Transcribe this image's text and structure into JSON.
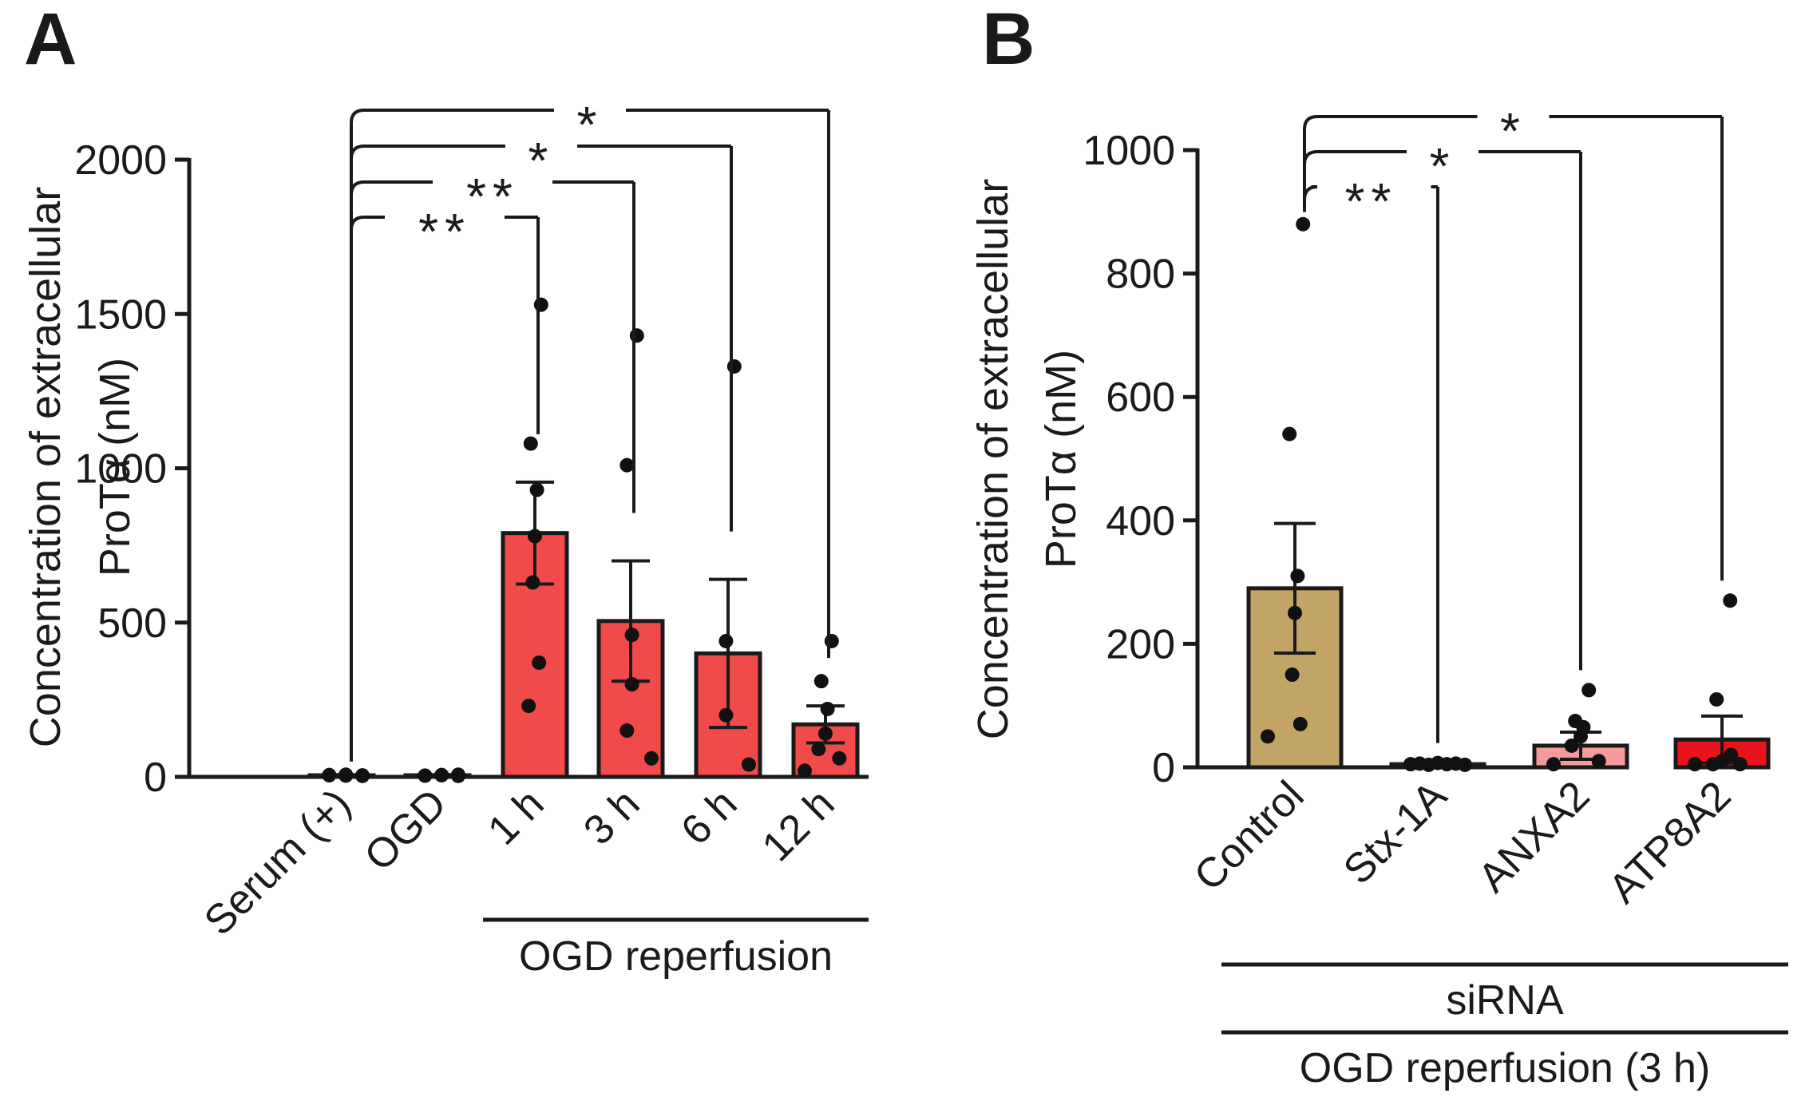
{
  "chart_data": [
    {
      "panel": "A",
      "type": "bar",
      "ylabel": [
        "Concentration of extracellular",
        "ProTα (nM)"
      ],
      "ylim": [
        0,
        2000
      ],
      "yticks": [
        0,
        500,
        1000,
        1500,
        2000
      ],
      "yticklabels": [
        "0",
        "500",
        "1000",
        "1500",
        "2000"
      ],
      "categories": [
        "Serum (+)",
        "OGD",
        "1 h",
        "3 h",
        "6 h",
        "12 h"
      ],
      "colors": [
        "#e23a3a",
        "#e23a3a",
        "#f04a4a",
        "#f04a4a",
        "#f04a4a",
        "#f04a4a"
      ],
      "values": [
        5,
        5,
        790,
        505,
        400,
        170
      ],
      "errors": [
        2,
        2,
        165,
        195,
        240,
        60
      ],
      "points": [
        [
          3,
          5,
          7,
          4,
          6,
          5
        ],
        [
          3,
          4,
          6,
          5,
          4,
          7
        ],
        [
          1530,
          1080,
          930,
          780,
          630,
          370,
          230
        ],
        [
          1430,
          1010,
          460,
          300,
          150,
          60
        ],
        [
          1330,
          440,
          200,
          40
        ],
        [
          440,
          310,
          220,
          140,
          90,
          60,
          20
        ]
      ],
      "groups": [
        {
          "label": "OGD reperfusion",
          "from": 2,
          "to": 5
        }
      ],
      "significance": [
        {
          "from": 0,
          "to": 5,
          "label": "*"
        },
        {
          "from": 0,
          "to": 4,
          "label": "*"
        },
        {
          "from": 0,
          "to": 3,
          "label": "**"
        },
        {
          "from": 0,
          "to": 2,
          "label": "**"
        }
      ]
    },
    {
      "panel": "B",
      "type": "bar",
      "ylabel": [
        "Concentration of extracellular",
        "ProTα (nM)"
      ],
      "ylim": [
        0,
        1000
      ],
      "yticks": [
        0,
        200,
        400,
        600,
        800,
        1000
      ],
      "yticklabels": [
        "0",
        "200",
        "400",
        "600",
        "800",
        "1000"
      ],
      "categories": [
        "Control",
        "Stx-1A",
        "ANXA2",
        "ATP8A2"
      ],
      "colors": [
        "#c2a466",
        "#d9d9d9",
        "#f49a9a",
        "#e8141c"
      ],
      "values": [
        290,
        5,
        35,
        45
      ],
      "errors": [
        105,
        2,
        22,
        38
      ],
      "points": [
        [
          880,
          540,
          310,
          250,
          150,
          70,
          50
        ],
        [
          4,
          6,
          5,
          7,
          4,
          6,
          5
        ],
        [
          125,
          75,
          65,
          50,
          35,
          10,
          5
        ],
        [
          270,
          110,
          20,
          10,
          5,
          5,
          5
        ]
      ],
      "groups": [
        {
          "label": "siRNA",
          "from": 0,
          "to": 3
        },
        {
          "label": "OGD reperfusion (3 h)",
          "from": 0,
          "to": 3
        }
      ],
      "significance": [
        {
          "from": 0,
          "to": 3,
          "label": "*"
        },
        {
          "from": 0,
          "to": 2,
          "label": "*"
        },
        {
          "from": 0,
          "to": 1,
          "label": "**"
        }
      ]
    }
  ],
  "panel_labels": [
    "A",
    "B"
  ]
}
